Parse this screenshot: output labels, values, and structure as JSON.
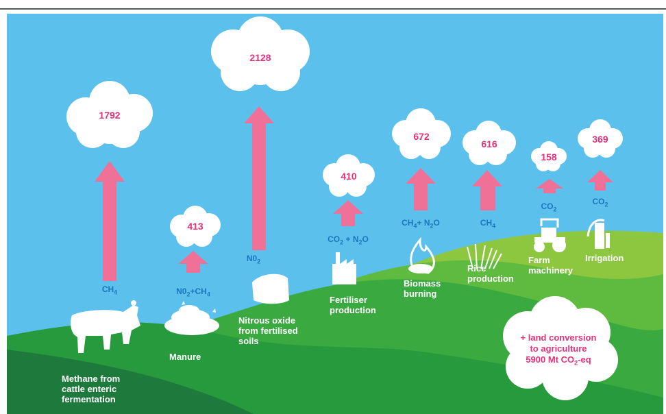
{
  "sources": [
    {
      "id": "cattle",
      "value": "1792",
      "gas_parts": [
        "CH",
        "4",
        ""
      ],
      "label_lines": [
        "Methane from",
        "cattle enteric",
        "fermentation"
      ]
    },
    {
      "id": "manure",
      "value": "413",
      "gas_parts": [
        "N0",
        "2",
        "+CH",
        "4",
        ""
      ],
      "label_lines": [
        "Manure"
      ]
    },
    {
      "id": "nitrous",
      "value": "2128",
      "gas_parts": [
        "N0",
        "2",
        ""
      ],
      "label_lines": [
        "Nitrous oxide",
        "from fertilised",
        "soils"
      ]
    },
    {
      "id": "fertiliser",
      "value": "410",
      "gas_parts": [
        "CO",
        "2",
        " + N",
        "2",
        "O"
      ],
      "label_lines": [
        "Fertiliser",
        "production"
      ]
    },
    {
      "id": "biomass",
      "value": "672",
      "gas_parts": [
        "CH",
        "4",
        "+ N",
        "2",
        "O"
      ],
      "label_lines": [
        "Biomass",
        "burning"
      ]
    },
    {
      "id": "rice",
      "value": "616",
      "gas_parts": [
        "CH",
        "4",
        ""
      ],
      "label_lines": [
        "Rice",
        "production"
      ]
    },
    {
      "id": "machinery",
      "value": "158",
      "gas_parts": [
        "CO",
        "2",
        ""
      ],
      "label_lines": [
        "Farm",
        "machinery"
      ]
    },
    {
      "id": "irrigation",
      "value": "369",
      "gas_parts": [
        "CO",
        "2",
        ""
      ],
      "label_lines": [
        "Irrigation"
      ]
    }
  ],
  "land_conversion": {
    "line1": "+ land conversion",
    "line2": "to agriculture",
    "line3_pre": "5900 Mt CO",
    "line3_sub": "2",
    "line3_post": "-eq"
  },
  "colors": {
    "sky": "#5bc1ec",
    "arrow": "#ef7197",
    "value": "#e5317a",
    "gas": "#1b76bd",
    "hill_dark": "#1d7a3c",
    "hill_mid": "#279a3d",
    "hill_light": "#5fbb3f",
    "hill_lime": "#8cc73f"
  }
}
